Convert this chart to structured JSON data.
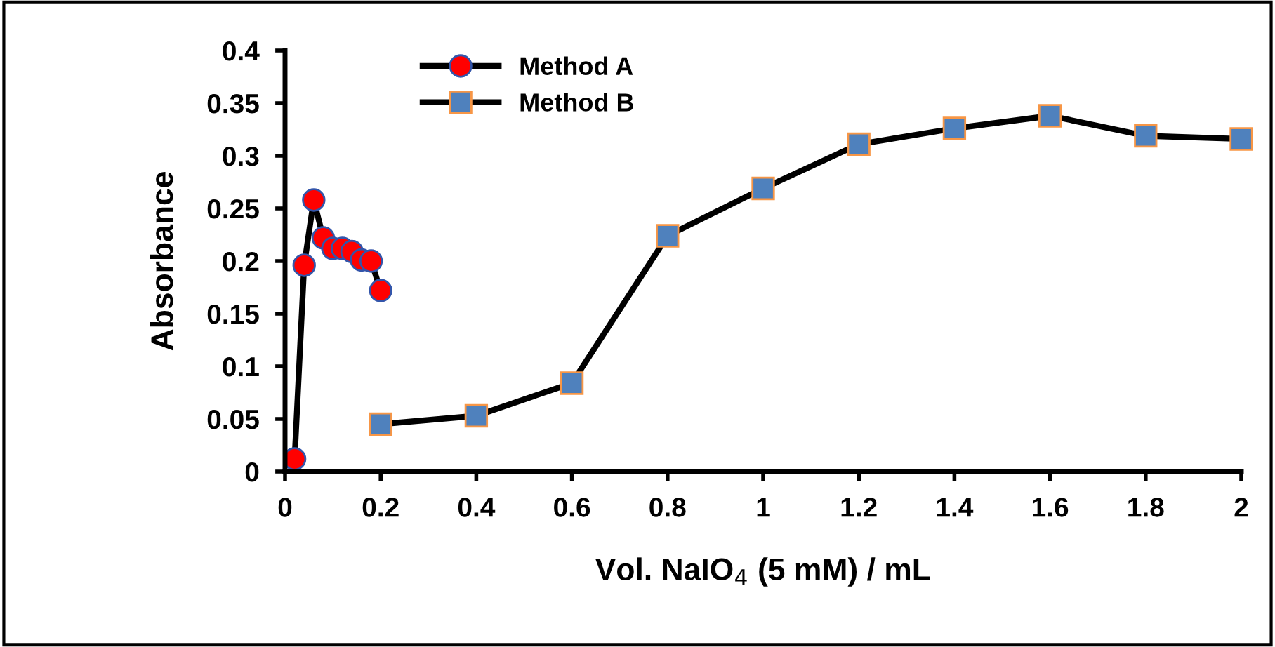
{
  "chart_data": {
    "type": "line",
    "xlabel": "Vol. NaIO$_{4}$ (5 mM) / mL",
    "ylabel": "Absorbance",
    "xlim": [
      0,
      2
    ],
    "xticks": [
      0,
      0.2,
      0.4,
      0.6,
      0.8,
      1,
      1.2,
      1.4,
      1.6,
      1.8,
      2
    ],
    "ylim": [
      0,
      0.4
    ],
    "yticks": [
      0,
      0.05,
      0.1,
      0.15,
      0.2,
      0.25,
      0.3,
      0.35,
      0.4
    ],
    "grid": false,
    "legend": "top left",
    "line_style": "solid",
    "series": [
      {
        "name": "Method A",
        "color": "#ff0000",
        "marker": "circle",
        "x": [
          0.02,
          0.04,
          0.06,
          0.08,
          0.1,
          0.12,
          0.14,
          0.16,
          0.18,
          0.2
        ],
        "values": [
          0.012,
          0.196,
          0.258,
          0.222,
          0.212,
          0.212,
          0.209,
          0.201,
          0.2,
          0.172
        ]
      },
      {
        "name": "Method B",
        "color": "#4f81bd",
        "marker": "square",
        "x": [
          0.2,
          0.4,
          0.6,
          0.8,
          1,
          1.2,
          1.4,
          1.6,
          1.8,
          2
        ],
        "values": [
          0.045,
          0.053,
          0.084,
          0.224,
          0.269,
          0.311,
          0.326,
          0.338,
          0.319,
          0.316
        ]
      }
    ]
  }
}
